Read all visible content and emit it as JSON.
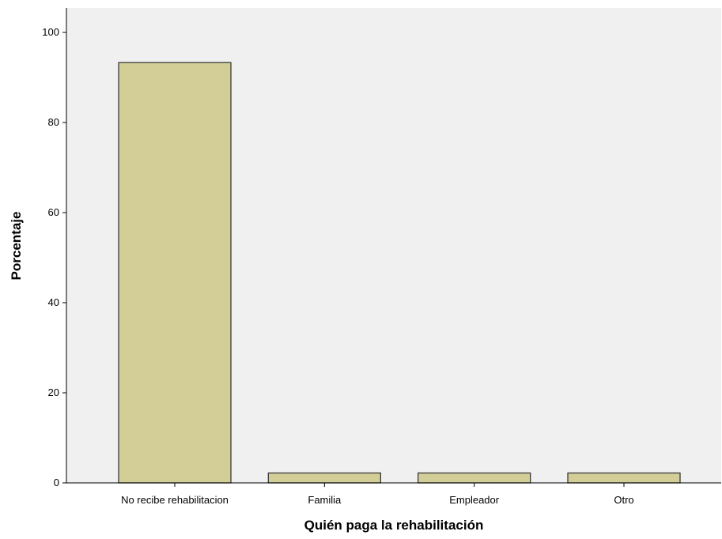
{
  "chart_data": {
    "type": "bar",
    "title": "",
    "xlabel": "Quién paga la rehabilitación",
    "ylabel": "Porcentaje",
    "categories": [
      "No recibe rehabilitacion",
      "Familia",
      "Empleador",
      "Otro"
    ],
    "values": [
      93.3,
      2.2,
      2.2,
      2.2
    ],
    "ylim": [
      0,
      100
    ],
    "yticks": [
      0,
      20,
      40,
      60,
      80,
      100
    ],
    "grid": false,
    "legend": "none",
    "colors": {
      "plot_background": "#f0f0f0",
      "bar_fill": "#d3ce97",
      "bar_stroke": "#3a3a3a",
      "axis": "#000000"
    }
  }
}
